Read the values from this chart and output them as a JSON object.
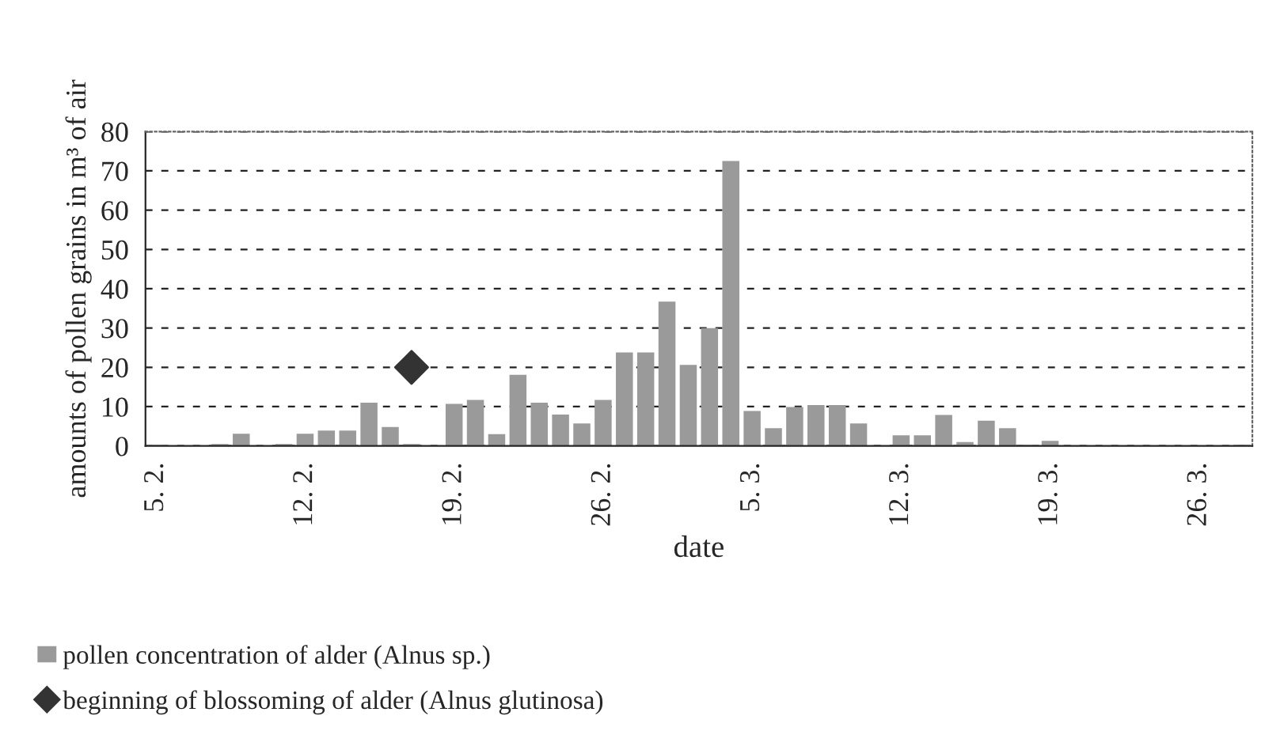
{
  "chart_data": {
    "type": "bar",
    "categories": [
      "5. 2.",
      null,
      null,
      null,
      null,
      null,
      null,
      "12. 2.",
      null,
      null,
      null,
      null,
      null,
      null,
      "19. 2.",
      null,
      null,
      null,
      null,
      null,
      null,
      "26. 2.",
      null,
      null,
      null,
      null,
      null,
      null,
      "5. 3.",
      null,
      null,
      null,
      null,
      null,
      null,
      "12. 3.",
      null,
      null,
      null,
      null,
      null,
      null,
      "19. 3.",
      null,
      null,
      null,
      null,
      null,
      null,
      "26. 3.",
      null,
      null
    ],
    "series": [
      {
        "name": "pollen concentration of alder (Alnus sp.)",
        "color": "#9a9a9a",
        "values": [
          0.3,
          0,
          0,
          0.5,
          3.1,
          0,
          0.5,
          3.1,
          3.9,
          3.9,
          11,
          4.8,
          0.5,
          0,
          10.7,
          11.7,
          3,
          18.1,
          11,
          8,
          5.7,
          11.7,
          23.8,
          23.8,
          36.7,
          20.6,
          30,
          72.5,
          8.9,
          4.5,
          9.9,
          10.4,
          10.4,
          5.7,
          0,
          2.7,
          2.7,
          7.9,
          1,
          6.4,
          4.5,
          0.3,
          1.3,
          0,
          0,
          0,
          0,
          0,
          0,
          0,
          0,
          0.3
        ]
      },
      {
        "name": "beginning of blossoming of alder (Alnus glutinosa)",
        "type": "scatter",
        "color": "#333333",
        "marker": "diamond",
        "values": [
          null,
          null,
          null,
          null,
          null,
          null,
          null,
          null,
          null,
          null,
          null,
          null,
          20,
          null,
          null,
          null,
          null,
          null,
          null,
          null,
          null,
          null,
          null,
          null,
          null,
          null,
          null,
          null,
          null,
          null,
          null,
          null,
          null,
          null,
          null,
          null,
          null,
          null,
          null,
          null,
          null,
          null,
          null,
          null,
          null,
          null,
          null,
          null,
          null,
          null,
          null,
          null
        ]
      }
    ],
    "xlabel": "date",
    "ylabel": "amounts of pollen grains in m³ of air",
    "ylim": [
      0,
      80
    ],
    "yticks": [
      0,
      10,
      20,
      30,
      40,
      50,
      60,
      70,
      80
    ],
    "grid": "y",
    "legend": "bottom left"
  }
}
